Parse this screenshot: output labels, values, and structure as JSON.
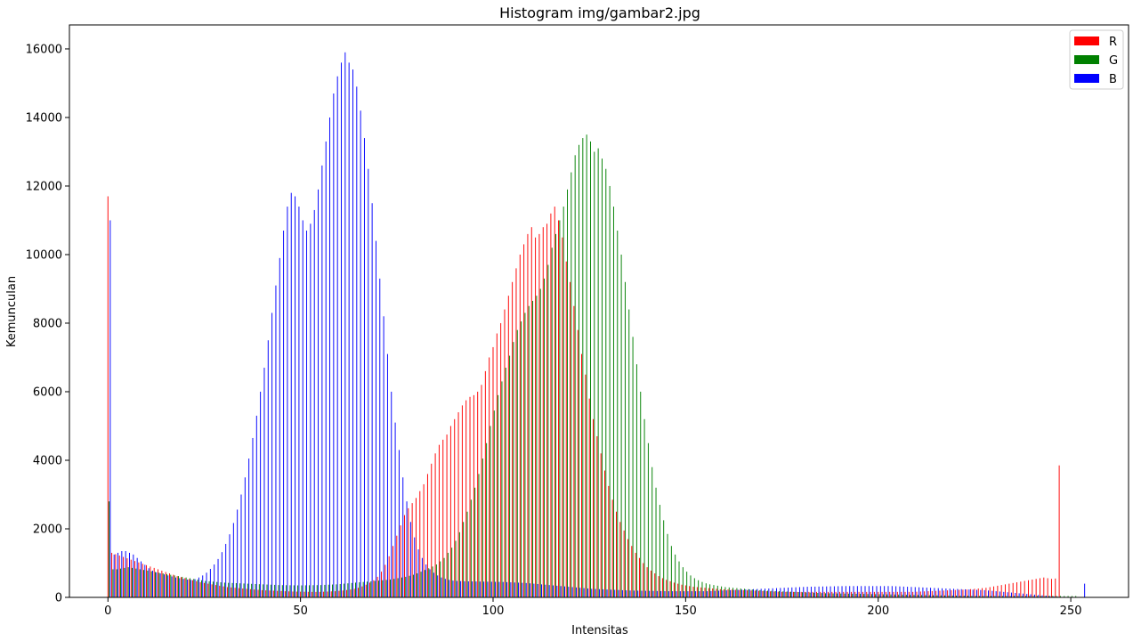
{
  "chart_data": {
    "type": "bar",
    "title": "Histogram img/gambar2.jpg",
    "xlabel": "Intensitas",
    "ylabel": "Kemunculan",
    "xlim": [
      -10,
      265
    ],
    "ylim": [
      0,
      16700
    ],
    "xticks": [
      0,
      50,
      100,
      150,
      200,
      250
    ],
    "yticks": [
      0,
      2000,
      4000,
      6000,
      8000,
      10000,
      12000,
      14000,
      16000
    ],
    "grid": false,
    "legend_position": "top-right",
    "series": [
      {
        "name": "R",
        "color": "#ff0000",
        "values": [
          11700,
          1300,
          1260,
          1220,
          1180,
          1140,
          1100,
          1060,
          1020,
          980,
          940,
          900,
          860,
          820,
          780,
          740,
          700,
          660,
          620,
          590,
          560,
          530,
          500,
          470,
          440,
          420,
          400,
          380,
          360,
          340,
          320,
          300,
          290,
          280,
          270,
          260,
          250,
          240,
          230,
          220,
          210,
          205,
          200,
          195,
          190,
          185,
          180,
          175,
          170,
          168,
          166,
          164,
          162,
          160,
          160,
          160,
          165,
          170,
          175,
          180,
          190,
          200,
          215,
          230,
          250,
          280,
          320,
          370,
          430,
          500,
          600,
          750,
          950,
          1200,
          1500,
          1800,
          2100,
          2400,
          2600,
          2750,
          2900,
          3100,
          3300,
          3600,
          3900,
          4200,
          4450,
          4600,
          4750,
          5000,
          5200,
          5400,
          5600,
          5750,
          5850,
          5900,
          6000,
          6200,
          6600,
          7000,
          7300,
          7700,
          8000,
          8400,
          8800,
          9200,
          9600,
          10000,
          10300,
          10600,
          10800,
          10500,
          10600,
          10800,
          10900,
          11200,
          11400,
          11000,
          10500,
          9800,
          9200,
          8500,
          7800,
          7100,
          6500,
          5800,
          5200,
          4700,
          4200,
          3700,
          3250,
          2850,
          2500,
          2200,
          1950,
          1700,
          1500,
          1300,
          1150,
          1000,
          880,
          780,
          700,
          620,
          560,
          510,
          470,
          430,
          400,
          370,
          350,
          330,
          310,
          300,
          290,
          280,
          270,
          260,
          250,
          240,
          235,
          230,
          225,
          220,
          215,
          210,
          205,
          200,
          195,
          190,
          185,
          180,
          175,
          170,
          165,
          160,
          160,
          160,
          160,
          160,
          160,
          160,
          160,
          160,
          160,
          160,
          160,
          160,
          160,
          160,
          160,
          160,
          160,
          160,
          160,
          160,
          160,
          160,
          160,
          160,
          160,
          160,
          160,
          160,
          160,
          160,
          160,
          160,
          160,
          160,
          165,
          170,
          175,
          180,
          185,
          190,
          195,
          200,
          205,
          210,
          215,
          220,
          225,
          230,
          240,
          250,
          260,
          270,
          280,
          300,
          320,
          340,
          360,
          380,
          400,
          420,
          440,
          460,
          480,
          500,
          520,
          540,
          560,
          580,
          560,
          540,
          550,
          3850
        ]
      },
      {
        "name": "G",
        "color": "#008000",
        "values": [
          2800,
          820,
          820,
          840,
          860,
          880,
          860,
          840,
          820,
          800,
          780,
          760,
          740,
          720,
          700,
          680,
          660,
          640,
          620,
          600,
          580,
          560,
          540,
          520,
          500,
          480,
          470,
          460,
          450,
          440,
          430,
          425,
          420,
          415,
          410,
          405,
          400,
          395,
          390,
          385,
          380,
          375,
          370,
          365,
          360,
          358,
          356,
          354,
          352,
          350,
          350,
          352,
          354,
          356,
          358,
          360,
          365,
          370,
          375,
          380,
          390,
          400,
          410,
          420,
          430,
          440,
          450,
          460,
          470,
          480,
          490,
          500,
          510,
          520,
          540,
          560,
          580,
          600,
          630,
          660,
          700,
          750,
          800,
          850,
          900,
          960,
          1050,
          1150,
          1300,
          1450,
          1650,
          1900,
          2200,
          2500,
          2850,
          3200,
          3600,
          4050,
          4500,
          5000,
          5450,
          5900,
          6300,
          6700,
          7050,
          7450,
          7800,
          8050,
          8300,
          8500,
          8650,
          8800,
          9000,
          9300,
          9700,
          10200,
          10600,
          11000,
          11400,
          11900,
          12400,
          12900,
          13200,
          13400,
          13500,
          13300,
          13000,
          13100,
          12800,
          12500,
          12000,
          11400,
          10700,
          10000,
          9200,
          8400,
          7600,
          6800,
          6000,
          5200,
          4500,
          3800,
          3200,
          2700,
          2250,
          1850,
          1500,
          1250,
          1050,
          880,
          750,
          640,
          560,
          500,
          450,
          410,
          380,
          360,
          340,
          320,
          300,
          290,
          280,
          270,
          260,
          250,
          240,
          230,
          220,
          210,
          200,
          195,
          190,
          185,
          180,
          175,
          170,
          165,
          160,
          155,
          150,
          145,
          140,
          135,
          130,
          125,
          120,
          118,
          116,
          114,
          112,
          110,
          108,
          106,
          104,
          102,
          100,
          98,
          96,
          94,
          92,
          90,
          88,
          86,
          84,
          82,
          80,
          78,
          76,
          74,
          72,
          70,
          68,
          66,
          64,
          62,
          60,
          58,
          56,
          54,
          52,
          50,
          48,
          46,
          44,
          42,
          40,
          40,
          40,
          40,
          40,
          40,
          40,
          40,
          40,
          40,
          40,
          40,
          40,
          40,
          40,
          40,
          40,
          40,
          40,
          40,
          40,
          40,
          40,
          40,
          40,
          40
        ]
      },
      {
        "name": "B",
        "color": "#0000ff",
        "values": [
          11000,
          1250,
          1300,
          1350,
          1350,
          1300,
          1250,
          1150,
          1050,
          950,
          850,
          780,
          730,
          700,
          670,
          640,
          610,
          580,
          560,
          540,
          520,
          510,
          530,
          580,
          640,
          720,
          830,
          960,
          1120,
          1320,
          1560,
          1840,
          2170,
          2560,
          3000,
          3500,
          4050,
          4650,
          5300,
          6000,
          6700,
          7500,
          8300,
          9100,
          9900,
          10700,
          11400,
          11800,
          11700,
          11400,
          11000,
          10700,
          10900,
          11300,
          11900,
          12600,
          13300,
          14000,
          14700,
          15200,
          15600,
          15900,
          15600,
          15400,
          14900,
          14200,
          13400,
          12500,
          11500,
          10400,
          9300,
          8200,
          7100,
          6000,
          5100,
          4300,
          3500,
          2800,
          2200,
          1750,
          1400,
          1150,
          960,
          820,
          720,
          640,
          580,
          540,
          510,
          490,
          480,
          475,
          470,
          468,
          466,
          464,
          462,
          460,
          458,
          456,
          454,
          452,
          450,
          445,
          440,
          435,
          430,
          425,
          420,
          410,
          400,
          390,
          380,
          370,
          360,
          350,
          340,
          330,
          320,
          310,
          300,
          290,
          280,
          270,
          260,
          250,
          245,
          240,
          235,
          230,
          225,
          220,
          215,
          210,
          205,
          200,
          198,
          196,
          194,
          192,
          190,
          188,
          186,
          184,
          182,
          180,
          180,
          180,
          180,
          180,
          180,
          180,
          180,
          180,
          180,
          180,
          185,
          190,
          195,
          200,
          205,
          210,
          215,
          220,
          225,
          230,
          235,
          240,
          245,
          250,
          255,
          260,
          265,
          270,
          275,
          280,
          285,
          290,
          295,
          300,
          305,
          310,
          312,
          314,
          316,
          318,
          320,
          322,
          324,
          326,
          328,
          330,
          330,
          330,
          330,
          330,
          330,
          330,
          330,
          330,
          330,
          330,
          330,
          330,
          325,
          320,
          315,
          310,
          305,
          300,
          295,
          290,
          285,
          280,
          275,
          270,
          265,
          260,
          255,
          250,
          245,
          240,
          235,
          230,
          225,
          220,
          215,
          210,
          200,
          190,
          180,
          170,
          160,
          150,
          140,
          130,
          120,
          110,
          100,
          90,
          80,
          70,
          60,
          50,
          40,
          30,
          20,
          10,
          10,
          10,
          10,
          10,
          10,
          400
        ]
      }
    ]
  }
}
